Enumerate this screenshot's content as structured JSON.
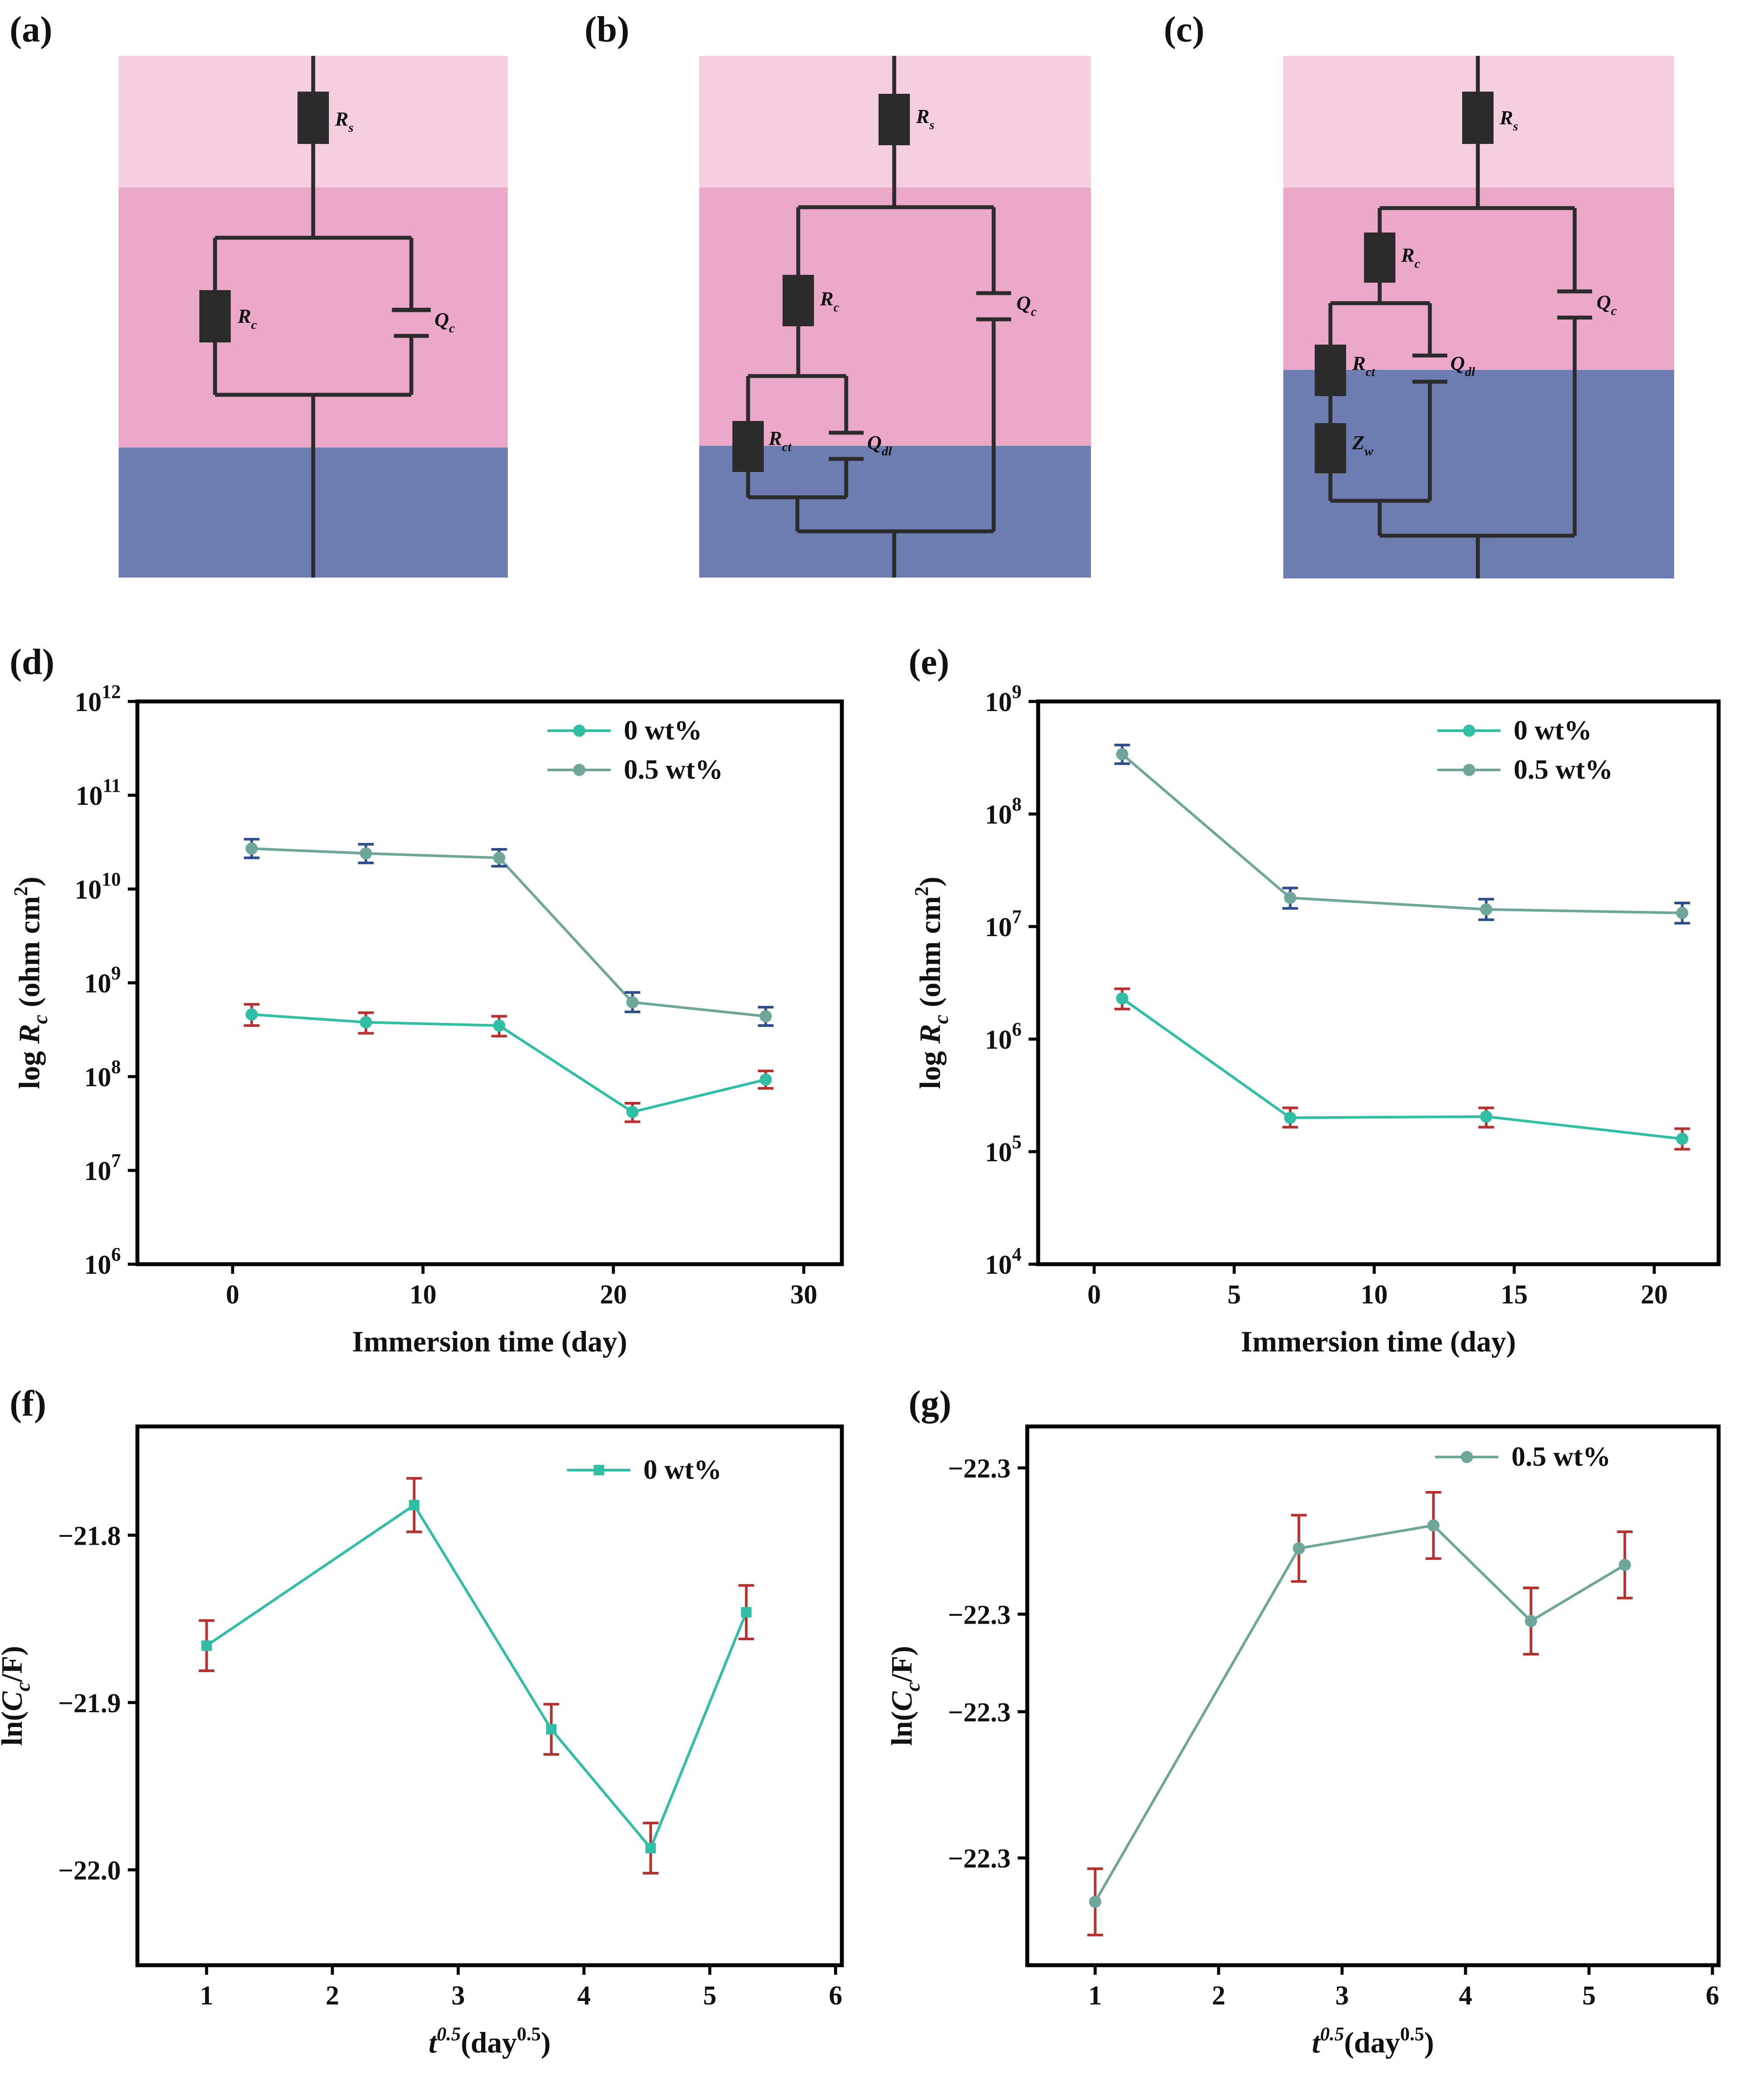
{
  "panel_labels": {
    "a": "(a)",
    "b": "(b)",
    "c": "(c)",
    "d": "(d)",
    "e": "(e)",
    "f": "(f)",
    "g": "(g)"
  },
  "colors": {
    "solution_layer": "#f5cfe0",
    "coating_layer": "#eba8c8",
    "metal_layer": "#6d7db2",
    "element": "#2b2b2b",
    "series_0wt": "#2ebfa4",
    "series_05wt": "#6fa69a",
    "errbar_red": "#b8302e",
    "errbar_blue": "#2c4c8a"
  },
  "circuits": {
    "a": {
      "labels": {
        "rs": "R",
        "rs_sub": "s",
        "rc": "R",
        "rc_sub": "c",
        "qc": "Q",
        "qc_sub": "c"
      }
    },
    "b": {
      "labels": {
        "rs": "R",
        "rs_sub": "s",
        "rc": "R",
        "rc_sub": "c",
        "qc": "Q",
        "qc_sub": "c",
        "rct": "R",
        "rct_sub": "ct",
        "qdl": "Q",
        "qdl_sub": "dl"
      }
    },
    "c": {
      "labels": {
        "rs": "R",
        "rs_sub": "s",
        "rc": "R",
        "rc_sub": "c",
        "qc": "Q",
        "qc_sub": "c",
        "rct": "R",
        "rct_sub": "ct",
        "qdl": "Q",
        "qdl_sub": "dl",
        "zw": "Z",
        "zw_sub": "w"
      }
    }
  },
  "chart_data": [
    {
      "id": "d",
      "type": "line",
      "yscale": "log",
      "xlabel": "Immersion time (day)",
      "ylabel_pre": "log ",
      "ylabel_var": "R",
      "ylabel_sub": "c",
      "ylabel_post": " (ohm cm",
      "ylabel_sup": "2",
      "ylabel_end": ")",
      "xlim": [
        -5,
        32
      ],
      "ylim_exp": [
        6,
        12
      ],
      "xticks": [
        0,
        10,
        20,
        30
      ],
      "xtick_labels": [
        "0",
        "10",
        "20",
        "30"
      ],
      "ytick_exps": [
        6,
        7,
        8,
        9,
        10,
        11,
        12
      ],
      "ytick_base": "10",
      "ytick_sups": [
        "6",
        "7",
        "8",
        "9",
        "10",
        "11",
        "12"
      ],
      "legend": [
        "0 wt%",
        "0.5 wt%"
      ],
      "series": [
        {
          "name": "0 wt%",
          "x": [
            1,
            7,
            14,
            21,
            28
          ],
          "y": [
            460000000.0,
            380000000.0,
            350000000.0,
            42000000.0,
            93000000.0
          ],
          "err_low": [
            350000000.0,
            290000000.0,
            270000000.0,
            33000000.0,
            75000000.0
          ],
          "err_high": [
            590000000.0,
            480000000.0,
            440000000.0,
            52000000.0,
            115000000.0
          ]
        },
        {
          "name": "0.5 wt%",
          "x": [
            1,
            7,
            14,
            21,
            28
          ],
          "y": [
            27000000000.0,
            24000000000.0,
            21500000000.0,
            620000000.0,
            440000000.0
          ],
          "err_low": [
            21500000000.0,
            19000000000.0,
            17500000000.0,
            490000000.0,
            350000000.0
          ],
          "err_high": [
            34000000000.0,
            30000000000.0,
            26500000000.0,
            790000000.0,
            550000000.0
          ]
        }
      ]
    },
    {
      "id": "e",
      "type": "line",
      "yscale": "log",
      "xlabel": "Immersion time (day)",
      "ylabel_pre": "log ",
      "ylabel_var": "R",
      "ylabel_sub": "c",
      "ylabel_post": " (ohm cm",
      "ylabel_sup": "2",
      "ylabel_end": ")",
      "xlim": [
        -2,
        22.3
      ],
      "ylim_exp": [
        4,
        9
      ],
      "xticks": [
        0,
        5,
        10,
        15,
        20
      ],
      "xtick_labels": [
        "0",
        "5",
        "10",
        "15",
        "20"
      ],
      "ytick_exps": [
        4,
        5,
        6,
        7,
        8,
        9
      ],
      "ytick_base": "10",
      "ytick_sups": [
        "4",
        "5",
        "6",
        "7",
        "8",
        "9"
      ],
      "legend": [
        "0 wt%",
        "0.5 wt%"
      ],
      "series": [
        {
          "name": "0 wt%",
          "x": [
            1,
            7,
            14,
            21
          ],
          "y": [
            2300000.0,
            200000.0,
            205000.0,
            130000.0
          ],
          "err_low": [
            1850000.0,
            165000.0,
            165000.0,
            105000.0
          ],
          "err_high": [
            2800000.0,
            245000.0,
            245000.0,
            160000.0
          ]
        },
        {
          "name": "0.5 wt%",
          "x": [
            1,
            7,
            14,
            21
          ],
          "y": [
            340000000.0,
            18000000.0,
            14200000.0,
            13200000.0
          ],
          "err_low": [
            280000000.0,
            14500000.0,
            11500000.0,
            10700000.0
          ],
          "err_high": [
            410000000.0,
            22000000.0,
            17500000.0,
            16200000.0
          ]
        }
      ]
    },
    {
      "id": "f",
      "type": "line",
      "xlabel_var": "t",
      "xlabel_sup": "0.5",
      "xlabel_mid": "(day",
      "xlabel_sup2": "0.5",
      "xlabel_end": ")",
      "ylabel_pre": "ln(",
      "ylabel_var": "C",
      "ylabel_sub": "c",
      "ylabel_post": "/F)",
      "xlim": [
        0.45,
        6.05
      ],
      "ylim": [
        -22.057,
        -21.735
      ],
      "xticks": [
        1,
        2,
        3,
        4,
        5,
        6
      ],
      "xtick_labels": [
        "1",
        "2",
        "3",
        "4",
        "5",
        "6"
      ],
      "yticks": [
        -21.8,
        -21.9,
        -22.0
      ],
      "ytick_labels": [
        "−21.8",
        "−21.9",
        "−22.0"
      ],
      "legend": [
        "0 wt%"
      ],
      "series": [
        {
          "name": "0 wt%",
          "x": [
            1.0,
            2.65,
            3.74,
            4.53,
            5.29
          ],
          "y": [
            -21.866,
            -21.782,
            -21.916,
            -21.987,
            -21.846
          ],
          "err": [
            0.015,
            0.016,
            0.015,
            0.015,
            0.016
          ]
        }
      ]
    },
    {
      "id": "g",
      "type": "line",
      "xlabel_var": "t",
      "xlabel_sup": "0.5",
      "xlabel_mid": "(day",
      "xlabel_sup2": "0.5",
      "xlabel_end": ")",
      "ylabel_pre": "ln(",
      "ylabel_var": "C",
      "ylabel_sub": "c",
      "ylabel_post": "/F)",
      "xlim": [
        0.45,
        6.05
      ],
      "ylim": [
        -22.372,
        -22.2615
      ],
      "xticks": [
        1,
        2,
        3,
        4,
        5,
        6
      ],
      "xtick_labels": [
        "1",
        "2",
        "3",
        "4",
        "5",
        "6"
      ],
      "yticks": [
        -22.27,
        -22.3,
        -22.32,
        -22.35
      ],
      "ytick_labels": [
        "−22.3",
        "−22.3",
        "−22.3",
        "−22.3"
      ],
      "legend": [
        "0.5 wt%"
      ],
      "series": [
        {
          "name": "0.5 wt%",
          "x": [
            1.0,
            2.65,
            3.74,
            4.53,
            5.29
          ],
          "y": [
            -22.359,
            -22.2865,
            -22.2818,
            -22.3014,
            -22.2899
          ],
          "err": [
            0.0068,
            0.0068,
            0.0068,
            0.0068,
            0.0068
          ]
        }
      ]
    }
  ]
}
